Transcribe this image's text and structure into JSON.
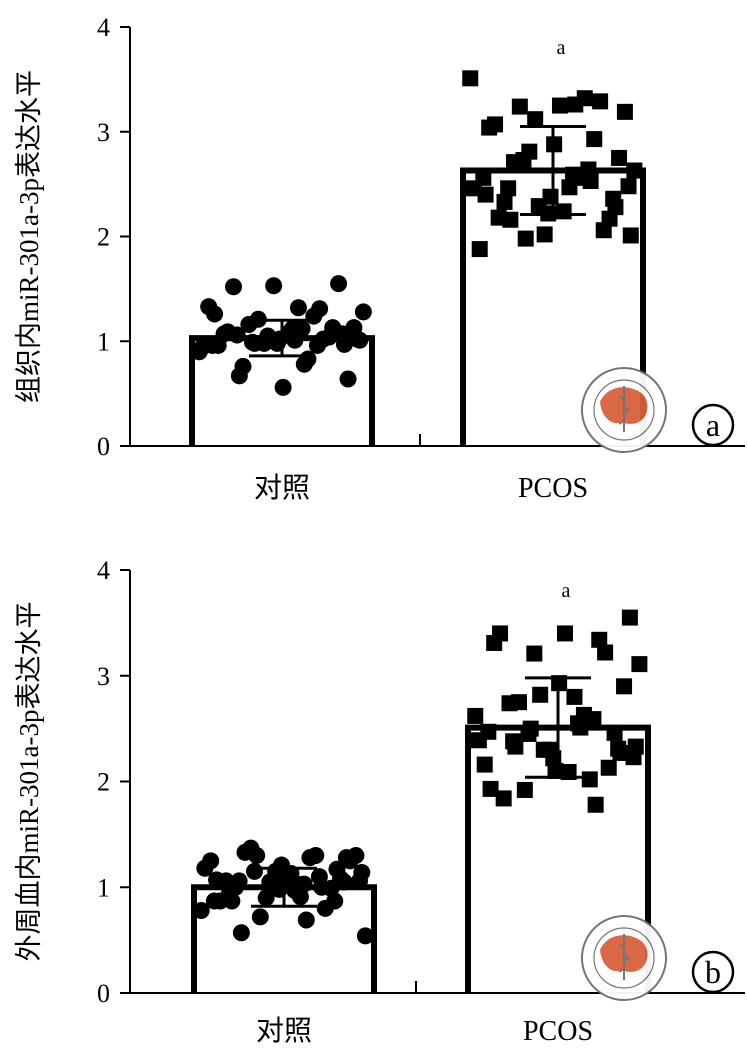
{
  "figure": {
    "panels": [
      {
        "panel_label": "a",
        "watermark": "中华医学会 CHINESE MEDICAL ASSOCIATION 1915"
      },
      {
        "panel_label": "b",
        "watermark": "中华医学会 CHINESE MEDICAL ASSOCIATION 1915"
      }
    ]
  },
  "colors": {
    "ink": "#000000",
    "seal_map": "#d9603b",
    "seal_ring": "#6e6e6e"
  },
  "chart_data": [
    {
      "type": "bar",
      "ylabel": "组织内miR-301a-3p表达水平",
      "ylim": [
        0,
        4
      ],
      "yticks": [
        0,
        1,
        2,
        3,
        4
      ],
      "categories": [
        "对照",
        "PCOS"
      ],
      "values": [
        1.03,
        2.63
      ],
      "sd": [
        0.17,
        0.42
      ],
      "annotations": [
        "",
        "a"
      ],
      "points": [
        [
          1.12,
          1.06,
          1.07,
          0.98,
          0.96,
          0.96,
          0.99,
          1.02,
          1.12,
          1.09,
          1.13,
          1.05,
          0.95,
          0.83,
          0.76,
          0.64,
          0.56,
          0.96,
          1.02,
          1.21,
          1.28,
          1.32,
          1.52,
          1.55,
          1.53,
          1.33,
          1.24,
          1.16,
          1.13,
          1.08,
          1.07,
          1.04,
          0.98,
          0.9,
          0.78,
          0.67,
          0.97,
          1.02,
          1.26,
          1.31,
          0.98,
          1.01,
          1.01
        ],
        [
          2.59,
          2.46,
          2.36,
          2.22,
          2.56,
          2.64,
          2.73,
          2.48,
          2.24,
          2.18,
          2.06,
          2.29,
          2.46,
          2.56,
          2.71,
          2.75,
          2.88,
          3.04,
          2.93,
          2.81,
          2.63,
          2.47,
          2.33,
          2.17,
          2.02,
          1.88,
          3.32,
          3.24,
          3.19,
          3.25,
          3.07,
          3.29,
          3.12,
          3.51,
          3.26,
          2.16,
          2.28,
          2.38,
          2.4,
          2.53,
          1.98,
          2.01
        ]
      ],
      "marker": [
        "circle",
        "square"
      ]
    },
    {
      "type": "bar",
      "ylabel": "外周血内miR-301a-3p表达水平",
      "ylim": [
        0,
        4
      ],
      "yticks": [
        0,
        1,
        2,
        3,
        4
      ],
      "categories": [
        "对照",
        "PCOS"
      ],
      "values": [
        1.0,
        2.51
      ],
      "sd": [
        0.18,
        0.47
      ],
      "annotations": [
        "",
        "a"
      ],
      "points": [
        [
          1.03,
          1.06,
          1.05,
          0.98,
          0.87,
          1.1,
          1.15,
          1.06,
          0.97,
          0.95,
          0.87,
          1.05,
          1.18,
          1.28,
          1.33,
          1.25,
          1.06,
          0.87,
          0.8,
          0.72,
          0.54,
          0.91,
          1.0,
          1.08,
          1.15,
          1.25,
          1.3,
          1.37,
          1.3,
          1.13,
          1.06,
          0.99,
          0.9,
          0.78,
          0.69,
          0.57,
          1.28,
          1.21,
          1.07,
          1.0,
          1.3,
          1.14,
          1.03,
          0.87,
          1.17,
          1.0
        ],
        [
          2.55,
          2.38,
          2.31,
          2.22,
          2.47,
          2.59,
          2.45,
          2.23,
          2.09,
          1.84,
          2.13,
          2.3,
          2.39,
          2.63,
          2.75,
          2.9,
          2.93,
          3.31,
          3.34,
          3.21,
          3.11,
          2.8,
          2.74,
          2.46,
          2.3,
          2.16,
          2.02,
          1.92,
          3.55,
          3.4,
          3.4,
          3.22,
          2.82,
          2.62,
          2.51,
          2.33,
          2.27,
          2.1,
          1.93,
          1.78,
          2.5,
          2.33
        ]
      ],
      "marker": [
        "circle",
        "square"
      ]
    }
  ]
}
